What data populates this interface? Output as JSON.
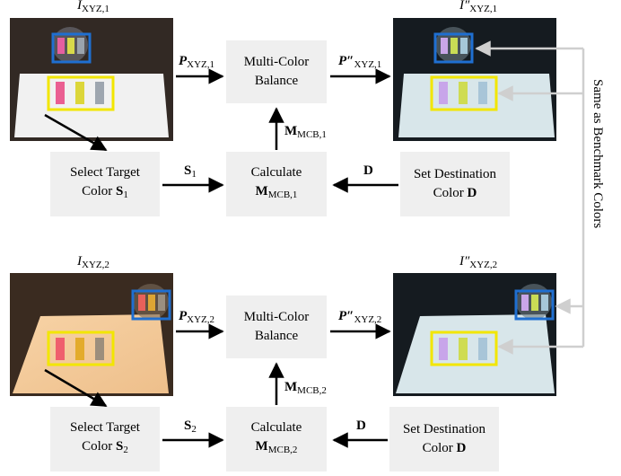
{
  "row1": {
    "input_image_label": {
      "base": "I",
      "sub": "XYZ,1"
    },
    "output_image_label": {
      "base": "I″",
      "sub": "XYZ,1"
    },
    "p_in": {
      "base": "P",
      "sub": "XYZ,1"
    },
    "p_out": {
      "base": "P″",
      "sub": "XYZ,1"
    },
    "balance_box": {
      "line1": "Multi-Color",
      "line2": "Balance"
    },
    "m_label": {
      "base": "M",
      "sub": "MCB,1"
    },
    "select_box": {
      "line1": "Select Target",
      "line2_prefix": "Color ",
      "line2_base": "S",
      "line2_sub": "1"
    },
    "s_label": {
      "base": "S",
      "sub": "1"
    },
    "calculate_box": {
      "line1": "Calculate",
      "line2_base": "M",
      "line2_sub": "MCB,1"
    },
    "d_label": "D",
    "destination_box": {
      "line1": "Set Destination",
      "line2_prefix": "Color ",
      "line2_bold": "D"
    }
  },
  "row2": {
    "input_image_label": {
      "base": "I",
      "sub": "XYZ,2"
    },
    "output_image_label": {
      "base": "I″",
      "sub": "XYZ,2"
    },
    "p_in": {
      "base": "P",
      "sub": "XYZ,2"
    },
    "p_out": {
      "base": "P″",
      "sub": "XYZ,2"
    },
    "balance_box": {
      "line1": "Multi-Color",
      "line2": "Balance"
    },
    "m_label": {
      "base": "M",
      "sub": "MCB,2"
    },
    "select_box": {
      "line1": "Select Target",
      "line2_prefix": "Color ",
      "line2_base": "S",
      "line2_sub": "2"
    },
    "s_label": {
      "base": "S",
      "sub": "2"
    },
    "calculate_box": {
      "line1": "Calculate",
      "line2_base": "M",
      "line2_sub": "MCB,2"
    },
    "d_label": "D",
    "destination_box": {
      "line1": "Set Destination",
      "line2_prefix": "Color ",
      "line2_bold": "D"
    }
  },
  "side_label": "Same as Benchmark Colors",
  "colors": {
    "box_fill": "#efefef",
    "highlight_yellow": "#f2e600",
    "highlight_blue": "#1f6fd1",
    "connector_gray": "#cfcfcf",
    "arrow": "#000000"
  }
}
